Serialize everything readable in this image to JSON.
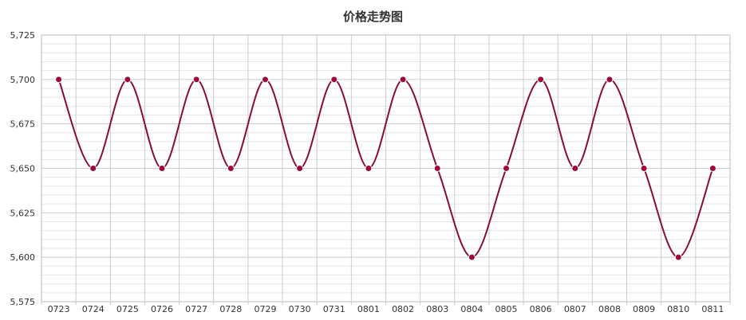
{
  "chart_data": {
    "type": "line",
    "title": "价格走势图",
    "xlabel": "",
    "ylabel": "",
    "categories": [
      "0723",
      "0724",
      "0725",
      "0726",
      "0727",
      "0728",
      "0729",
      "0730",
      "0731",
      "0801",
      "0802",
      "0803",
      "0804",
      "0805",
      "0806",
      "0807",
      "0808",
      "0809",
      "0810",
      "0811"
    ],
    "series": [
      {
        "values": [
          5700,
          5650,
          5700,
          5650,
          5700,
          5650,
          5700,
          5650,
          5700,
          5650,
          5700,
          5650,
          5600,
          5650,
          5700,
          5650,
          5700,
          5650,
          5600,
          5650
        ]
      }
    ],
    "ylim": [
      5575,
      5725
    ],
    "yticks": [
      "5,575",
      "5,600",
      "5,625",
      "5,650",
      "5,675",
      "5,700",
      "5,725"
    ],
    "grid": true,
    "legend": "none",
    "colors": {
      "line": "#8b0a3a",
      "marker": "#9a0a3c",
      "grid_major": "#cccccc",
      "grid_minor": "#e6e6e6",
      "axis_text": "#333333"
    }
  }
}
